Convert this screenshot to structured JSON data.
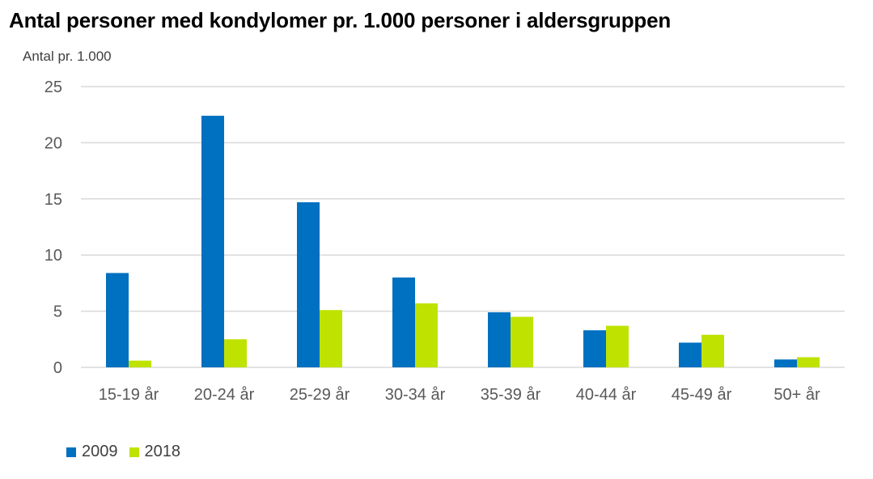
{
  "chart_data": {
    "type": "bar",
    "title": "Antal personer med kondylomer pr. 1.000 personer i aldersgruppen",
    "ylabel": "Antal pr. 1.000",
    "xlabel": "",
    "categories": [
      "15-19 år",
      "20-24 år",
      "25-29 år",
      "30-34 år",
      "35-39 år",
      "40-44 år",
      "45-49 år",
      "50+ år"
    ],
    "series": [
      {
        "name": "2009",
        "color": "#0070C0",
        "values": [
          8.4,
          22.4,
          14.7,
          8.0,
          4.9,
          3.3,
          2.2,
          0.7
        ]
      },
      {
        "name": "2018",
        "color": "#BFE200",
        "values": [
          0.6,
          2.5,
          5.1,
          5.7,
          4.5,
          3.7,
          2.9,
          0.9
        ]
      }
    ],
    "ylim": [
      0,
      25
    ],
    "yticks": [
      0,
      5,
      10,
      15,
      20,
      25
    ],
    "grid": true,
    "gridColor": "#D9D9D9",
    "legend_position": "bottom-left"
  }
}
